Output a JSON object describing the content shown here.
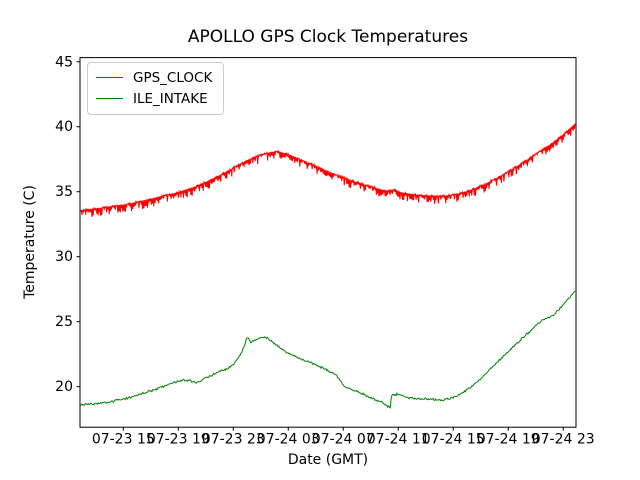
{
  "chart_data": {
    "type": "line",
    "title": "APOLLO GPS Clock Temperatures",
    "xlabel": "Date (GMT)",
    "ylabel": "Temperature (C)",
    "grid": false,
    "legend_position": "upper left",
    "xlim_hours": [
      11.85,
      47.93
    ],
    "ylim": [
      16.88,
      45.32
    ],
    "y_ticks": [
      45,
      40,
      35,
      30,
      25,
      20
    ],
    "x_ticks": [
      {
        "hour": 15,
        "label": "07-23 15"
      },
      {
        "hour": 19,
        "label": "07-23 19"
      },
      {
        "hour": 23,
        "label": "07-23 23"
      },
      {
        "hour": 27,
        "label": "07-24 03"
      },
      {
        "hour": 31,
        "label": "07-24 07"
      },
      {
        "hour": 35,
        "label": "07-24 11"
      },
      {
        "hour": 39,
        "label": "07-24 15"
      },
      {
        "hour": 43,
        "label": "07-24 19"
      },
      {
        "hour": 47,
        "label": "07-24 23"
      }
    ],
    "series": [
      {
        "name": "GPS_CLOCK",
        "color": "#ff0000",
        "noise": {
          "type": "drops",
          "seed": 7,
          "amp": 0.62,
          "step": 0.045
        },
        "points": [
          [
            11.86,
            33.6
          ],
          [
            13,
            33.75
          ],
          [
            14,
            33.9
          ],
          [
            15,
            34.05
          ],
          [
            16,
            34.25
          ],
          [
            17,
            34.5
          ],
          [
            18,
            34.75
          ],
          [
            19,
            35.0
          ],
          [
            20,
            35.35
          ],
          [
            21,
            35.8
          ],
          [
            22,
            36.3
          ],
          [
            23,
            36.9
          ],
          [
            24,
            37.45
          ],
          [
            25,
            37.9
          ],
          [
            25.6,
            38.05
          ],
          [
            26.2,
            38.15
          ],
          [
            26.8,
            38.0
          ],
          [
            27.5,
            37.7
          ],
          [
            28.5,
            37.25
          ],
          [
            29.5,
            36.8
          ],
          [
            30.5,
            36.35
          ],
          [
            31.5,
            35.95
          ],
          [
            32.5,
            35.6
          ],
          [
            33.5,
            35.3
          ],
          [
            34.2,
            35.1
          ],
          [
            34.8,
            35.2
          ],
          [
            35.2,
            35.0
          ],
          [
            36,
            34.85
          ],
          [
            37,
            34.75
          ],
          [
            37.8,
            34.7
          ],
          [
            38.6,
            34.75
          ],
          [
            39.4,
            34.9
          ],
          [
            40.2,
            35.15
          ],
          [
            41,
            35.5
          ],
          [
            42,
            36.0
          ],
          [
            43,
            36.6
          ],
          [
            44,
            37.25
          ],
          [
            45,
            37.95
          ],
          [
            46,
            38.65
          ],
          [
            47,
            39.45
          ],
          [
            47.9,
            40.3
          ]
        ]
      },
      {
        "name": "ILE_INTAKE",
        "color": "#008000",
        "noise": {
          "type": "jitter",
          "seed": 3,
          "amp": 0.1,
          "step": 0.06
        },
        "points": [
          [
            11.86,
            18.62
          ],
          [
            12.5,
            18.65
          ],
          [
            13.2,
            18.7
          ],
          [
            14,
            18.8
          ],
          [
            14.8,
            19.0
          ],
          [
            15.6,
            19.2
          ],
          [
            16.4,
            19.5
          ],
          [
            17.2,
            19.75
          ],
          [
            18,
            20.05
          ],
          [
            18.8,
            20.35
          ],
          [
            19.4,
            20.5
          ],
          [
            19.9,
            20.42
          ],
          [
            20.3,
            20.32
          ],
          [
            20.8,
            20.55
          ],
          [
            21.5,
            20.9
          ],
          [
            22.1,
            21.25
          ],
          [
            22.5,
            21.35
          ],
          [
            23,
            21.75
          ],
          [
            23.5,
            22.4
          ],
          [
            23.8,
            23.1
          ],
          [
            24.0,
            23.85
          ],
          [
            24.3,
            23.4
          ],
          [
            24.6,
            23.6
          ],
          [
            24.9,
            23.75
          ],
          [
            25.3,
            23.8
          ],
          [
            25.6,
            23.65
          ],
          [
            26,
            23.3
          ],
          [
            26.6,
            22.85
          ],
          [
            27.3,
            22.4
          ],
          [
            28,
            22.1
          ],
          [
            28.7,
            21.8
          ],
          [
            29.4,
            21.5
          ],
          [
            30.1,
            21.1
          ],
          [
            30.5,
            20.9
          ],
          [
            30.8,
            20.45
          ],
          [
            31.1,
            20.0
          ],
          [
            31.8,
            19.7
          ],
          [
            32.5,
            19.4
          ],
          [
            33.2,
            19.05
          ],
          [
            33.8,
            18.8
          ],
          [
            34.2,
            18.5
          ],
          [
            34.42,
            18.35
          ],
          [
            34.5,
            19.3
          ],
          [
            34.9,
            19.42
          ],
          [
            35.3,
            19.3
          ],
          [
            35.8,
            19.15
          ],
          [
            36.5,
            19.1
          ],
          [
            37.2,
            19.05
          ],
          [
            37.8,
            19.0
          ],
          [
            38.3,
            18.95
          ],
          [
            38.8,
            19.1
          ],
          [
            39.4,
            19.35
          ],
          [
            40,
            19.75
          ],
          [
            40.7,
            20.3
          ],
          [
            41.4,
            21.0
          ],
          [
            42.1,
            21.8
          ],
          [
            42.8,
            22.5
          ],
          [
            43.5,
            23.2
          ],
          [
            44.2,
            23.9
          ],
          [
            44.9,
            24.6
          ],
          [
            45.5,
            25.1
          ],
          [
            46,
            25.35
          ],
          [
            46.4,
            25.6
          ],
          [
            46.9,
            26.2
          ],
          [
            47.4,
            26.8
          ],
          [
            47.9,
            27.4
          ]
        ]
      }
    ]
  }
}
